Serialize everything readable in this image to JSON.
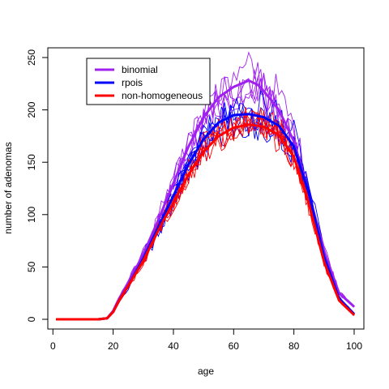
{
  "chart_data": {
    "type": "line",
    "title": "",
    "xlabel": "age",
    "ylabel": "number of adenomas",
    "xlim": [
      1,
      100
    ],
    "ylim": [
      0,
      250
    ],
    "xticks": [
      0,
      20,
      40,
      60,
      80,
      100
    ],
    "yticks": [
      0,
      50,
      100,
      150,
      200,
      250
    ],
    "grid": false,
    "legend_position": "top-left",
    "legend": [
      {
        "name": "binomial",
        "color": "#a020f0"
      },
      {
        "name": "rpois",
        "color": "#0000ff"
      },
      {
        "name": "non-homogeneous",
        "color": "#ff0000"
      }
    ],
    "series": [
      {
        "name": "binomial",
        "color": "#a020f0",
        "role": "mean",
        "x": [
          1,
          5,
          10,
          15,
          18,
          20,
          22,
          25,
          30,
          35,
          40,
          45,
          50,
          55,
          60,
          65,
          68,
          70,
          75,
          80,
          85,
          90,
          95,
          100
        ],
        "y": [
          0,
          0,
          0,
          0,
          1,
          8,
          20,
          35,
          62,
          95,
          130,
          165,
          193,
          212,
          222,
          228,
          224,
          218,
          200,
          170,
          120,
          65,
          25,
          12
        ]
      },
      {
        "name": "rpois",
        "color": "#0000ff",
        "role": "mean",
        "x": [
          1,
          5,
          10,
          15,
          18,
          20,
          22,
          25,
          30,
          35,
          40,
          45,
          50,
          55,
          60,
          65,
          70,
          75,
          80,
          85,
          90,
          95,
          100
        ],
        "y": [
          0,
          0,
          0,
          0,
          1,
          7,
          18,
          32,
          58,
          88,
          118,
          148,
          172,
          188,
          195,
          196,
          193,
          185,
          165,
          120,
          60,
          20,
          5
        ]
      },
      {
        "name": "non-homogeneous",
        "color": "#ff0000",
        "role": "mean",
        "x": [
          1,
          5,
          10,
          15,
          18,
          20,
          22,
          25,
          30,
          35,
          40,
          45,
          50,
          55,
          60,
          65,
          70,
          75,
          80,
          85,
          90,
          95,
          100
        ],
        "y": [
          0,
          0,
          0,
          0,
          1,
          7,
          18,
          32,
          56,
          85,
          112,
          138,
          160,
          175,
          183,
          186,
          184,
          176,
          155,
          110,
          55,
          18,
          4
        ]
      }
    ]
  }
}
